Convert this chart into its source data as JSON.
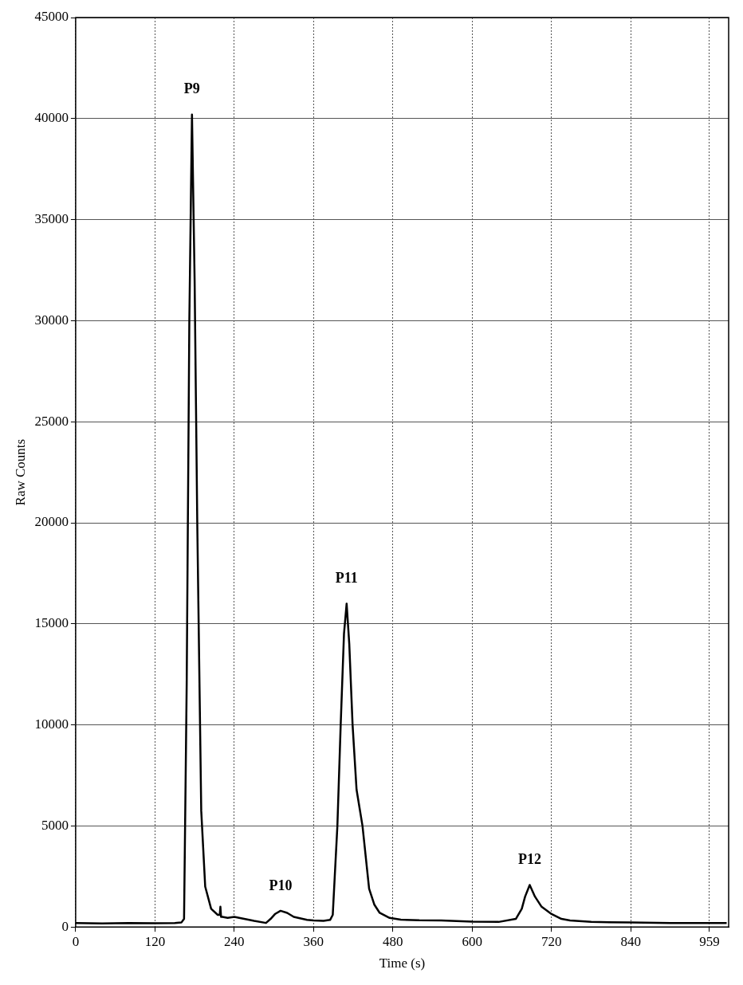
{
  "chart_data": {
    "type": "line",
    "xlabel": "Time (s)",
    "ylabel": "Raw Counts",
    "xlim": [
      0,
      988
    ],
    "xticks": [
      0,
      120,
      240,
      360,
      480,
      600,
      720,
      840,
      959
    ],
    "ylim": [
      0,
      45000
    ],
    "yticks": [
      0,
      5000,
      10000,
      15000,
      20000,
      25000,
      30000,
      35000,
      40000,
      45000
    ],
    "grid": true,
    "line_style": "solid",
    "marker": "none",
    "series": [
      {
        "color": "#000000",
        "x": [
          0,
          40,
          80,
          120,
          150,
          160,
          164,
          168,
          172,
          176,
          180,
          184,
          190,
          196,
          205,
          215,
          218,
          219,
          220,
          222,
          230,
          240,
          255,
          270,
          288,
          295,
          302,
          310,
          320,
          330,
          338,
          350,
          360,
          375,
          385,
          389,
          396,
          401,
          406,
          410,
          414,
          419,
          425,
          434,
          444,
          452,
          460,
          475,
          492,
          520,
          553,
          600,
          640,
          666,
          675,
          680,
          687,
          695,
          705,
          720,
          735,
          748,
          780,
          840,
          900,
          959,
          985
        ],
        "values": [
          200,
          180,
          200,
          190,
          200,
          220,
          400,
          12000,
          30000,
          40200,
          32000,
          20000,
          5760,
          2000,
          900,
          600,
          600,
          1000,
          500,
          500,
          450,
          500,
          400,
          300,
          200,
          400,
          650,
          800,
          700,
          500,
          440,
          350,
          320,
          300,
          350,
          600,
          5000,
          10000,
          14500,
          16000,
          14000,
          10000,
          6800,
          5000,
          1900,
          1100,
          700,
          450,
          360,
          330,
          320,
          260,
          250,
          400,
          900,
          1500,
          2080,
          1500,
          1000,
          640,
          400,
          320,
          250,
          220,
          200,
          200,
          200
        ]
      }
    ],
    "annotations": [
      {
        "text": "P9",
        "x": 176,
        "y": 40200
      },
      {
        "text": "P10",
        "x": 310,
        "y": 800
      },
      {
        "text": "P11",
        "x": 410,
        "y": 16000
      },
      {
        "text": "P12",
        "x": 687,
        "y": 2080
      }
    ]
  }
}
